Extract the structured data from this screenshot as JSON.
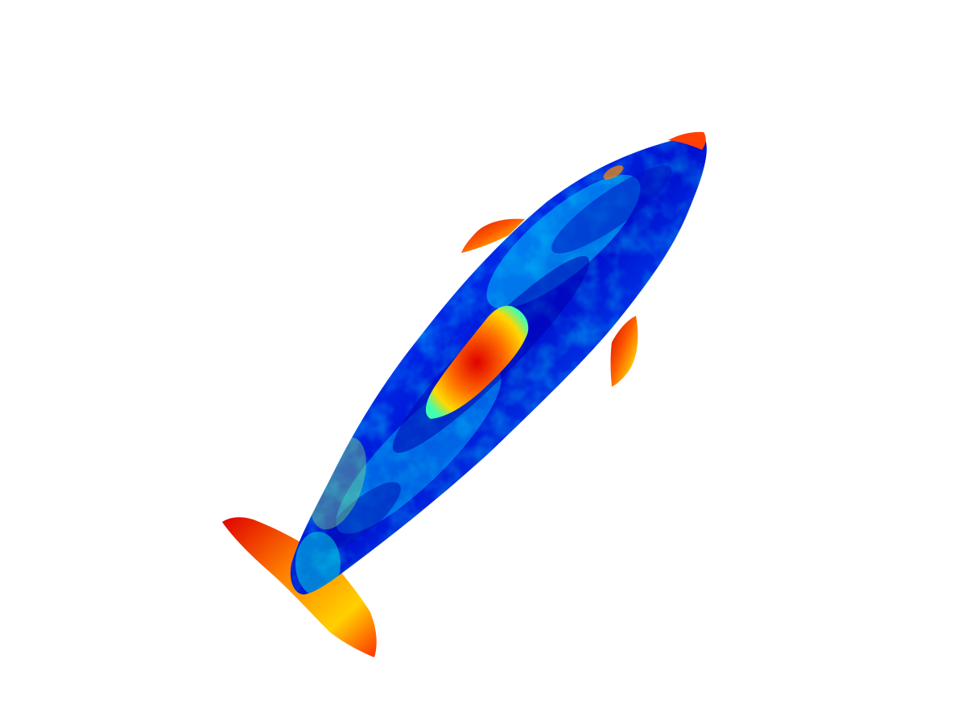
{
  "view": {
    "background": "#ffffff",
    "colormap": "jet",
    "colormap_stops": [
      "#00008f",
      "#0000ff",
      "#0080ff",
      "#00ffff",
      "#80ff80",
      "#ffff00",
      "#ff8000",
      "#ff0000",
      "#800000"
    ]
  },
  "mesh": {
    "subject": "dolphin",
    "parts": [
      "body",
      "tail-fluke",
      "dorsal-fin",
      "pectoral-fin",
      "snout"
    ],
    "high_value_regions": [
      "tail-fluke",
      "dorsal-fin",
      "pectoral-fin",
      "snout",
      "belly-patch"
    ],
    "low_value_regions": [
      "body-core"
    ]
  }
}
